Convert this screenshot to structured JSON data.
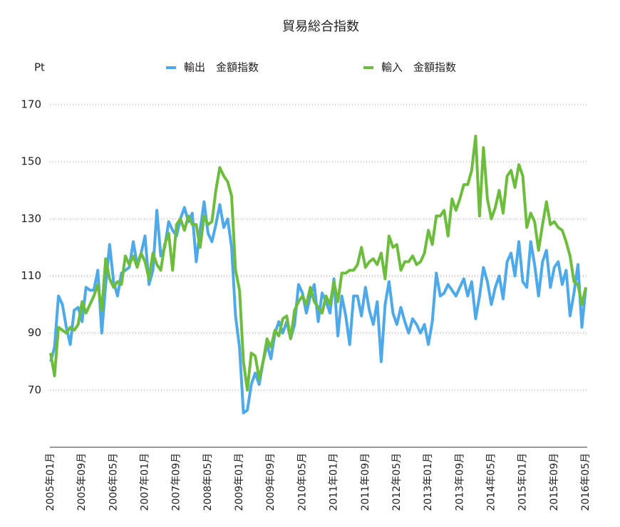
{
  "chart_data": {
    "type": "line",
    "title": "貿易総合指数",
    "y_label": "Pt",
    "categories": [
      "2005年01月",
      null,
      null,
      null,
      null,
      null,
      null,
      null,
      "2005年09月",
      null,
      null,
      null,
      null,
      null,
      null,
      null,
      "2006年05月",
      null,
      null,
      null,
      null,
      null,
      null,
      null,
      "2007年01月",
      null,
      null,
      null,
      null,
      null,
      null,
      null,
      "2007年09月",
      null,
      null,
      null,
      null,
      null,
      null,
      null,
      "2008年05月",
      null,
      null,
      null,
      null,
      null,
      null,
      null,
      "2009年01月",
      null,
      null,
      null,
      null,
      null,
      null,
      null,
      "2009年09月",
      null,
      null,
      null,
      null,
      null,
      null,
      null,
      "2010年05月",
      null,
      null,
      null,
      null,
      null,
      null,
      null,
      "2011年01月",
      null,
      null,
      null,
      null,
      null,
      null,
      null,
      "2011年09月",
      null,
      null,
      null,
      null,
      null,
      null,
      null,
      "2012年05月",
      null,
      null,
      null,
      null,
      null,
      null,
      null,
      "2013年01月",
      null,
      null,
      null,
      null,
      null,
      null,
      null,
      "2013年09月",
      null,
      null,
      null,
      null,
      null,
      null,
      null,
      "2014年05月",
      null,
      null,
      null,
      null,
      null,
      null,
      null,
      "2015年01月",
      null,
      null,
      null,
      null,
      null,
      null,
      null,
      "2015年09月",
      null,
      null,
      null,
      null,
      null,
      null,
      null,
      "2016年05月"
    ],
    "series": [
      {
        "name": "輸出　金額指数",
        "color": "#4da9e9",
        "values": [
          80,
          85,
          103,
          100,
          92,
          86,
          98,
          99,
          94,
          106,
          105,
          105,
          112,
          90,
          107,
          121,
          108,
          103,
          111,
          112,
          113,
          122,
          114,
          118,
          124,
          107,
          112,
          133,
          117,
          120,
          129,
          126,
          124,
          130,
          134,
          129,
          132,
          115,
          126,
          136,
          125,
          122,
          128,
          135,
          127,
          130,
          120,
          96,
          85,
          62,
          63,
          72,
          76,
          72,
          80,
          86,
          81,
          90,
          94,
          90,
          94,
          88,
          93,
          107,
          104,
          97,
          103,
          107,
          94,
          104,
          101,
          97,
          109,
          89,
          103,
          96,
          86,
          103,
          103,
          96,
          106,
          98,
          93,
          101,
          80,
          100,
          108,
          97,
          93,
          99,
          94,
          90,
          95,
          93,
          90,
          93,
          86,
          94,
          111,
          103,
          104,
          107,
          105,
          103,
          106,
          109,
          103,
          108,
          95,
          103,
          113,
          108,
          100,
          106,
          110,
          102,
          115,
          118,
          110,
          122,
          108,
          106,
          122,
          114,
          103,
          115,
          119,
          106,
          113,
          115,
          107,
          112,
          96,
          104,
          114,
          92,
          106
        ]
      },
      {
        "name": "輸入　金額指数",
        "color": "#6dbd3d",
        "values": [
          83,
          75,
          92,
          91,
          90,
          92,
          91,
          93,
          101,
          97,
          100,
          103,
          107,
          98,
          116,
          109,
          106,
          108,
          107,
          117,
          114,
          117,
          113,
          118,
          115,
          109,
          118,
          114,
          112,
          121,
          125,
          112,
          128,
          130,
          126,
          131,
          128,
          128,
          120,
          131,
          128,
          129,
          140,
          148,
          145,
          143,
          138,
          112,
          105,
          80,
          70,
          83,
          82,
          74,
          80,
          88,
          85,
          91,
          89,
          95,
          96,
          88,
          98,
          101,
          103,
          100,
          106,
          101,
          99,
          97,
          103,
          100,
          108,
          101,
          111,
          111,
          112,
          112,
          114,
          120,
          113,
          115,
          116,
          114,
          118,
          109,
          124,
          120,
          121,
          112,
          115,
          115,
          117,
          114,
          115,
          118,
          126,
          121,
          131,
          131,
          133,
          124,
          137,
          133,
          137,
          142,
          142,
          147,
          159,
          131,
          155,
          137,
          130,
          134,
          140,
          132,
          145,
          147,
          141,
          149,
          145,
          127,
          132,
          129,
          119,
          128,
          136,
          128,
          129,
          127,
          126,
          122,
          117,
          108,
          107,
          100,
          106
        ]
      }
    ],
    "ylim": [
      50,
      170
    ],
    "yticks": [
      70,
      90,
      110,
      130,
      150,
      170
    ],
    "grid": true,
    "legend": "top"
  }
}
